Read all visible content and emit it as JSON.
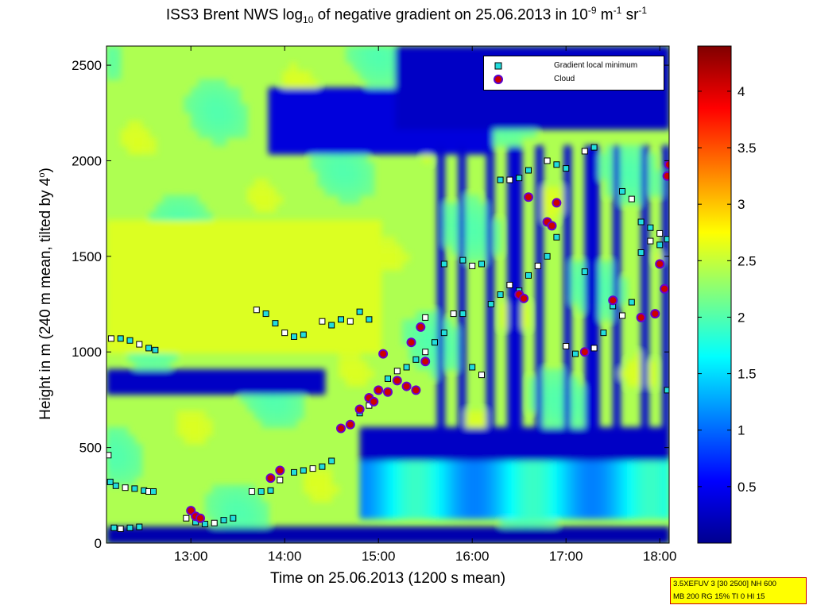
{
  "title": {
    "prefix": "ISS3 Brent NWS log",
    "sub": "10",
    "middle": " of negative gradient on 25.06.2013 in 10",
    "exp1": "-9",
    "unit1": " m",
    "exp2": "-1",
    "unit2": " sr",
    "exp3": "-1"
  },
  "xlabel": "Time on 25.06.2013 (1200 s mean)",
  "ylabel_main": "Height in m (240 m mean, tilted by 4",
  "ylabel_deg": "o",
  "ylabel_end": ")",
  "legend": {
    "items": [
      {
        "label": "Gradient local minimum",
        "marker": "square",
        "color": "#22dddd"
      },
      {
        "label": "Cloud",
        "marker": "circle",
        "color": "#cc0000"
      }
    ]
  },
  "infobox": {
    "line1": "3.5XEFUV 3 [30 2500] NH 600",
    "line2": "MB 200 RG 15% TI 0 HI 15"
  },
  "chart_data": {
    "type": "heatmap",
    "title": "ISS3 Brent NWS log10 of negative gradient on 25.06.2013 in 10^-9 m^-1 sr^-1",
    "xlabel": "Time on 25.06.2013 (1200 s mean)",
    "ylabel": "Height in m (240 m mean, tilted by 4°)",
    "xlim": [
      12.1,
      18.1
    ],
    "ylim": [
      0,
      2600
    ],
    "x_ticks": [
      13,
      14,
      15,
      16,
      17,
      18
    ],
    "x_tick_labels": [
      "13:00",
      "14:00",
      "15:00",
      "16:00",
      "17:00",
      "18:00"
    ],
    "y_ticks": [
      0,
      500,
      1000,
      1500,
      2000,
      2500
    ],
    "y_tick_labels": [
      "0",
      "500",
      "1000",
      "1500",
      "2000",
      "2500"
    ],
    "colorbar": {
      "range": [
        0,
        4.4
      ],
      "colormap": "jet",
      "ticks": [
        0.5,
        1,
        1.5,
        2,
        2.5,
        3,
        3.5,
        4
      ],
      "tick_labels": [
        "0.5",
        "1",
        "1.5",
        "2",
        "2.5",
        "3",
        "3.5",
        "4"
      ]
    },
    "field_description": {
      "low_value_bands": [
        {
          "x": [
            12.1,
            18.1
          ],
          "y": [
            0,
            90
          ],
          "value": 0.2
        },
        {
          "x": [
            12.1,
            14.4
          ],
          "y": [
            760,
            900
          ],
          "value": 0.3
        },
        {
          "x": [
            14.8,
            18.1
          ],
          "y": [
            120,
            600
          ],
          "value": 0.3
        },
        {
          "x": [
            13.8,
            16.2
          ],
          "y": [
            2050,
            2400
          ],
          "value": 0.4
        },
        {
          "x": [
            15.2,
            18.1
          ],
          "y": [
            2150,
            2600
          ],
          "value": 0.3
        }
      ]
    },
    "series": [
      {
        "name": "Gradient local minimum",
        "marker": "square",
        "points": [
          [
            12.12,
            460
          ],
          [
            12.14,
            320
          ],
          [
            12.2,
            300
          ],
          [
            12.3,
            290
          ],
          [
            12.4,
            285
          ],
          [
            12.5,
            275
          ],
          [
            12.55,
            270
          ],
          [
            12.6,
            270
          ],
          [
            12.18,
            80
          ],
          [
            12.25,
            75
          ],
          [
            12.35,
            80
          ],
          [
            12.45,
            85
          ],
          [
            12.15,
            1070
          ],
          [
            12.25,
            1070
          ],
          [
            12.35,
            1060
          ],
          [
            12.45,
            1040
          ],
          [
            12.55,
            1020
          ],
          [
            12.62,
            1010
          ],
          [
            12.95,
            130
          ],
          [
            13.05,
            110
          ],
          [
            13.15,
            100
          ],
          [
            13.25,
            105
          ],
          [
            13.35,
            120
          ],
          [
            13.45,
            130
          ],
          [
            13.65,
            270
          ],
          [
            13.75,
            270
          ],
          [
            13.85,
            275
          ],
          [
            13.95,
            330
          ],
          [
            14.1,
            370
          ],
          [
            14.2,
            380
          ],
          [
            14.3,
            390
          ],
          [
            14.4,
            400
          ],
          [
            14.5,
            430
          ],
          [
            13.7,
            1220
          ],
          [
            13.8,
            1200
          ],
          [
            13.9,
            1150
          ],
          [
            14.0,
            1100
          ],
          [
            14.1,
            1080
          ],
          [
            14.2,
            1090
          ],
          [
            14.4,
            1160
          ],
          [
            14.5,
            1140
          ],
          [
            14.6,
            1170
          ],
          [
            14.7,
            1160
          ],
          [
            14.8,
            1210
          ],
          [
            14.9,
            1170
          ],
          [
            14.6,
            600
          ],
          [
            14.7,
            620
          ],
          [
            14.8,
            680
          ],
          [
            14.9,
            720
          ],
          [
            15.0,
            800
          ],
          [
            15.1,
            860
          ],
          [
            15.2,
            900
          ],
          [
            15.3,
            920
          ],
          [
            15.4,
            960
          ],
          [
            15.5,
            1000
          ],
          [
            15.6,
            1050
          ],
          [
            15.7,
            1100
          ],
          [
            15.8,
            1200
          ],
          [
            15.9,
            1200
          ],
          [
            16.0,
            920
          ],
          [
            16.1,
            880
          ],
          [
            16.2,
            1250
          ],
          [
            16.3,
            1300
          ],
          [
            16.4,
            1350
          ],
          [
            16.5,
            1320
          ],
          [
            16.6,
            1400
          ],
          [
            16.7,
            1450
          ],
          [
            16.8,
            1500
          ],
          [
            16.9,
            1600
          ],
          [
            17.0,
            1030
          ],
          [
            17.1,
            990
          ],
          [
            17.2,
            1420
          ],
          [
            17.3,
            1020
          ],
          [
            17.4,
            1100
          ],
          [
            17.5,
            1240
          ],
          [
            17.6,
            1190
          ],
          [
            17.7,
            1260
          ],
          [
            17.8,
            1520
          ],
          [
            17.9,
            1580
          ],
          [
            18.0,
            1560
          ],
          [
            18.08,
            800
          ],
          [
            15.5,
            1180
          ],
          [
            15.7,
            1460
          ],
          [
            15.9,
            1480
          ],
          [
            16.0,
            1450
          ],
          [
            16.1,
            1460
          ],
          [
            16.3,
            1900
          ],
          [
            16.4,
            1900
          ],
          [
            16.5,
            1910
          ],
          [
            16.6,
            1950
          ],
          [
            16.8,
            2000
          ],
          [
            16.9,
            1980
          ],
          [
            17.0,
            1960
          ],
          [
            17.2,
            2050
          ],
          [
            17.3,
            2070
          ],
          [
            17.6,
            1840
          ],
          [
            17.7,
            1800
          ],
          [
            17.8,
            1680
          ],
          [
            17.9,
            1650
          ],
          [
            18.0,
            1620
          ],
          [
            18.08,
            1590
          ]
        ]
      },
      {
        "name": "Cloud",
        "marker": "circle",
        "points": [
          [
            13.0,
            170
          ],
          [
            13.05,
            140
          ],
          [
            13.1,
            130
          ],
          [
            13.85,
            340
          ],
          [
            13.95,
            380
          ],
          [
            14.6,
            600
          ],
          [
            14.7,
            620
          ],
          [
            14.8,
            700
          ],
          [
            14.9,
            760
          ],
          [
            14.95,
            740
          ],
          [
            15.0,
            800
          ],
          [
            15.05,
            990
          ],
          [
            15.1,
            790
          ],
          [
            15.2,
            850
          ],
          [
            15.3,
            820
          ],
          [
            15.35,
            1050
          ],
          [
            15.4,
            800
          ],
          [
            15.45,
            1130
          ],
          [
            15.5,
            950
          ],
          [
            16.5,
            1300
          ],
          [
            16.55,
            1280
          ],
          [
            16.6,
            1810
          ],
          [
            16.8,
            1680
          ],
          [
            16.85,
            1660
          ],
          [
            16.9,
            1780
          ],
          [
            17.2,
            1000
          ],
          [
            17.5,
            1270
          ],
          [
            17.8,
            1180
          ],
          [
            17.95,
            1200
          ],
          [
            18.0,
            1460
          ],
          [
            18.05,
            1330
          ],
          [
            18.08,
            1920
          ],
          [
            18.1,
            1980
          ]
        ]
      }
    ]
  }
}
